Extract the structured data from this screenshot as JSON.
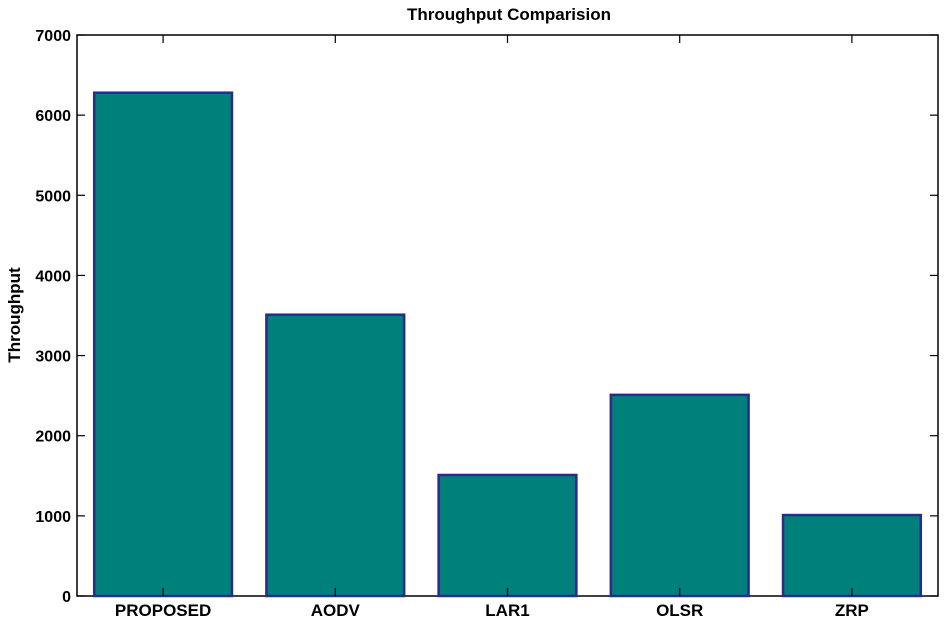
{
  "chart_data": {
    "type": "bar",
    "title": "Throughput Comparision",
    "xlabel": "",
    "ylabel": "Throughput",
    "categories": [
      "PROPOSED",
      "AODV",
      "LAR1",
      "OLSR",
      "ZRP"
    ],
    "values": [
      6280,
      3510,
      1510,
      2510,
      1010
    ],
    "ylim": [
      0,
      7000
    ],
    "yticks": [
      0,
      1000,
      2000,
      3000,
      4000,
      5000,
      6000,
      7000
    ],
    "grid": false,
    "legend": "none",
    "colors": {
      "bar_fill": "#00807a",
      "bar_edge": "#2b2b8c",
      "axis": "#000000"
    }
  }
}
